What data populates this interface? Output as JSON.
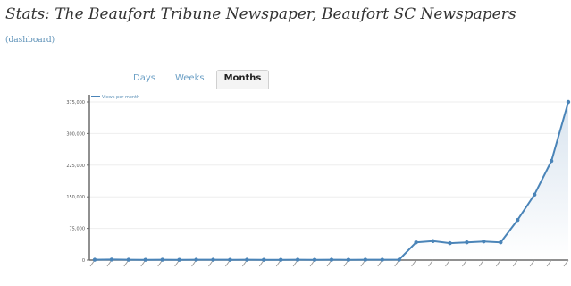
{
  "page": {
    "title": "Stats: The Beaufort Tribune Newspaper, Beaufort SC Newspapers",
    "dashboard_link": "(dashboard)"
  },
  "tabs": [
    {
      "label": "Days",
      "active": false
    },
    {
      "label": "Weeks",
      "active": false
    },
    {
      "label": "Months",
      "active": true
    }
  ],
  "colors": {
    "line": "#4a84b8",
    "area_top": "#d9e4ef",
    "area_bottom": "#ffffff",
    "axis": "#6b6b6b",
    "grid": "#eeeeee"
  },
  "chart_data": {
    "type": "line",
    "legend": "Views per month",
    "legend_position": "top-left",
    "grid": true,
    "y_ticks": [
      "0",
      "75,000",
      "150,000",
      "225,000",
      "300,000",
      "375,000"
    ],
    "ylim": [
      0,
      375000
    ],
    "series": [
      {
        "name": "Views per month",
        "values": [
          800,
          1200,
          800,
          600,
          800,
          600,
          900,
          800,
          700,
          800,
          700,
          600,
          900,
          700,
          800,
          700,
          900,
          800,
          1000,
          42000,
          45000,
          40000,
          42000,
          44000,
          42000,
          95000,
          155000,
          235000,
          375000
        ]
      }
    ]
  }
}
